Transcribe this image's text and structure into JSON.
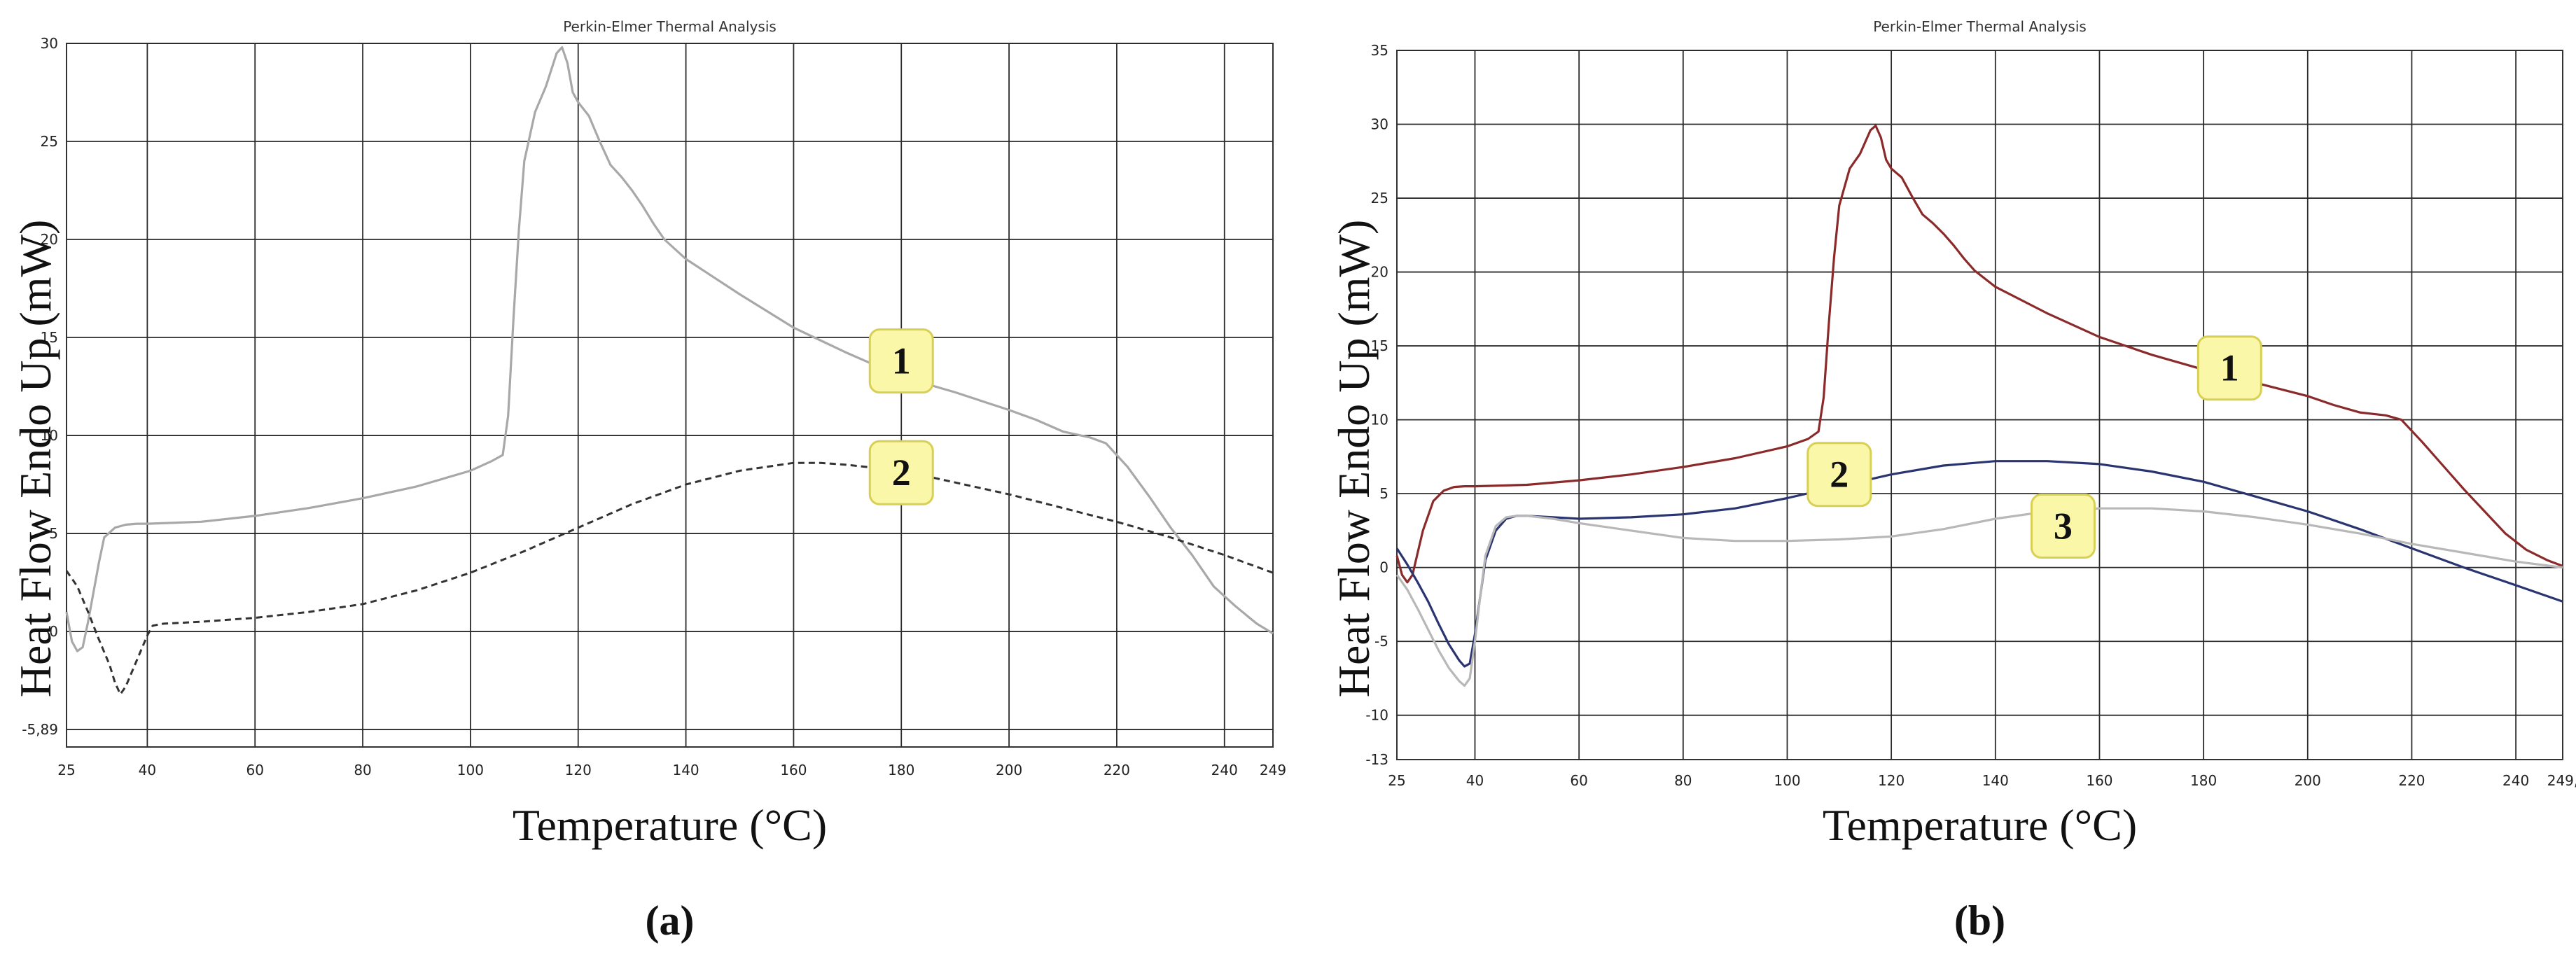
{
  "chart_data": [
    {
      "type": "line",
      "panel_label": "(a)",
      "title": "Perkin-Elmer Thermal Analysis",
      "xlabel": "Temperature (°C)",
      "ylabel": "Heat Flow Endo Up (mW)",
      "xlim": [
        25,
        249
      ],
      "ylim": [
        -5.89,
        30
      ],
      "x_ticks": [
        "25",
        "40",
        "60",
        "80",
        "100",
        "120",
        "140",
        "160",
        "180",
        "200",
        "220",
        "240",
        "249"
      ],
      "y_ticks": [
        "30",
        "25",
        "20",
        "15",
        "10",
        "5",
        "0",
        "-5,89"
      ],
      "grid": true,
      "series": [
        {
          "name": "1",
          "color": "#a8a8a8",
          "dash": "solid",
          "x": [
            25,
            26,
            27,
            28,
            29,
            30,
            31,
            32,
            34,
            36,
            38,
            40,
            50,
            60,
            70,
            80,
            90,
            100,
            104,
            106,
            107,
            108,
            109,
            110,
            112,
            114,
            116,
            117,
            118,
            119,
            120,
            122,
            124,
            126,
            128,
            130,
            132,
            134,
            136,
            140,
            150,
            160,
            170,
            180,
            190,
            200,
            205,
            210,
            215,
            218,
            222,
            226,
            230,
            234,
            238,
            242,
            246,
            249
          ],
          "y": [
            1.0,
            -0.5,
            -1.0,
            -0.8,
            0.5,
            2.0,
            3.5,
            4.8,
            5.3,
            5.45,
            5.5,
            5.5,
            5.6,
            5.9,
            6.3,
            6.8,
            7.4,
            8.2,
            8.7,
            9.0,
            11.0,
            16.0,
            20.5,
            24.0,
            26.5,
            27.8,
            29.5,
            29.8,
            29.0,
            27.5,
            27.0,
            26.3,
            25.0,
            23.8,
            23.2,
            22.5,
            21.7,
            20.8,
            20.0,
            19.0,
            17.2,
            15.5,
            14.2,
            13.0,
            12.2,
            11.3,
            10.8,
            10.2,
            9.9,
            9.6,
            8.4,
            6.9,
            5.3,
            3.9,
            2.3,
            1.3,
            0.4,
            -0.1
          ]
        },
        {
          "name": "2",
          "color": "#333333",
          "dash": "dashed",
          "x": [
            25,
            27,
            29,
            31,
            33,
            34,
            35,
            36,
            38,
            40,
            41,
            43,
            50,
            60,
            70,
            80,
            90,
            100,
            110,
            120,
            130,
            140,
            150,
            160,
            165,
            170,
            180,
            190,
            200,
            210,
            220,
            230,
            240,
            249
          ],
          "y": [
            3.1,
            2.3,
            1.0,
            -0.4,
            -1.7,
            -2.6,
            -3.2,
            -2.8,
            -1.5,
            -0.2,
            0.3,
            0.4,
            0.5,
            0.7,
            1.0,
            1.4,
            2.1,
            3.0,
            4.1,
            5.3,
            6.5,
            7.5,
            8.2,
            8.6,
            8.6,
            8.5,
            8.2,
            7.6,
            7.0,
            6.3,
            5.6,
            4.8,
            3.9,
            3.0
          ]
        }
      ],
      "annotations": [
        {
          "text": "1",
          "x": 180,
          "y": 13.8
        },
        {
          "text": "2",
          "x": 180,
          "y": 8.1
        }
      ]
    },
    {
      "type": "line",
      "panel_label": "(b)",
      "title": "Perkin-Elmer Thermal Analysis",
      "xlabel": "Temperature (°C)",
      "ylabel": "Heat Flow Endo Up (mW)",
      "xlim": [
        25,
        249
      ],
      "ylim": [
        -13,
        35
      ],
      "x_ticks": [
        "25",
        "40",
        "60",
        "80",
        "100",
        "120",
        "140",
        "160",
        "180",
        "200",
        "220",
        "240",
        "249,"
      ],
      "y_ticks": [
        "35",
        "30",
        "25",
        "20",
        "15",
        "10",
        "5",
        "0",
        "-5",
        "-10",
        "-13"
      ],
      "grid": true,
      "series": [
        {
          "name": "1",
          "color": "#8b2a2a",
          "dash": "solid",
          "x": [
            25,
            26,
            27,
            28,
            29,
            30,
            32,
            34,
            36,
            38,
            40,
            50,
            60,
            70,
            80,
            90,
            100,
            104,
            106,
            107,
            108,
            109,
            110,
            112,
            114,
            116,
            117,
            118,
            119,
            120,
            122,
            124,
            126,
            128,
            130,
            132,
            134,
            136,
            140,
            150,
            160,
            170,
            180,
            190,
            200,
            205,
            210,
            215,
            218,
            222,
            226,
            230,
            234,
            238,
            242,
            246,
            249
          ],
          "y": [
            0.8,
            -0.5,
            -1.0,
            -0.5,
            1.0,
            2.5,
            4.5,
            5.2,
            5.45,
            5.5,
            5.5,
            5.6,
            5.9,
            6.3,
            6.8,
            7.4,
            8.2,
            8.7,
            9.2,
            11.5,
            16.5,
            21.0,
            24.5,
            27.0,
            28.0,
            29.6,
            29.9,
            29.1,
            27.6,
            27.0,
            26.4,
            25.1,
            23.9,
            23.3,
            22.6,
            21.8,
            20.9,
            20.1,
            19.0,
            17.2,
            15.6,
            14.4,
            13.4,
            12.5,
            11.6,
            11.0,
            10.5,
            10.3,
            10.0,
            8.5,
            6.9,
            5.3,
            3.8,
            2.3,
            1.2,
            0.5,
            0.1
          ]
        },
        {
          "name": "2",
          "color": "#2a3470",
          "dash": "solid",
          "x": [
            25,
            27,
            29,
            31,
            33,
            35,
            37,
            38,
            39,
            40,
            41,
            42,
            44,
            46,
            48,
            50,
            55,
            60,
            70,
            80,
            90,
            100,
            110,
            120,
            130,
            140,
            150,
            160,
            170,
            180,
            190,
            200,
            210,
            220,
            230,
            240,
            249
          ],
          "y": [
            1.3,
            0.2,
            -1.0,
            -2.3,
            -3.8,
            -5.2,
            -6.3,
            -6.7,
            -6.5,
            -4.5,
            -2.0,
            0.5,
            2.5,
            3.3,
            3.5,
            3.5,
            3.4,
            3.3,
            3.4,
            3.6,
            4.0,
            4.7,
            5.5,
            6.3,
            6.9,
            7.2,
            7.2,
            7.0,
            6.5,
            5.8,
            4.8,
            3.8,
            2.6,
            1.3,
            0.0,
            -1.2,
            -2.3
          ]
        },
        {
          "name": "3",
          "color": "#b8b8b8",
          "dash": "solid",
          "x": [
            25,
            27,
            29,
            31,
            33,
            35,
            37,
            38,
            39,
            40,
            41,
            42,
            44,
            46,
            48,
            50,
            55,
            60,
            70,
            80,
            90,
            100,
            110,
            120,
            130,
            140,
            150,
            160,
            170,
            180,
            190,
            200,
            210,
            220,
            230,
            240,
            249
          ],
          "y": [
            -0.5,
            -1.5,
            -2.8,
            -4.2,
            -5.6,
            -6.8,
            -7.7,
            -8.0,
            -7.5,
            -5.0,
            -2.0,
            0.8,
            2.8,
            3.4,
            3.5,
            3.5,
            3.3,
            3.0,
            2.5,
            2.0,
            1.8,
            1.8,
            1.9,
            2.1,
            2.6,
            3.3,
            3.8,
            4.0,
            4.0,
            3.8,
            3.4,
            2.9,
            2.3,
            1.6,
            1.0,
            0.4,
            0.0
          ]
        }
      ],
      "annotations": [
        {
          "text": "1",
          "x": 185,
          "y": 13.5
        },
        {
          "text": "2",
          "x": 110,
          "y": 6.3
        },
        {
          "text": "3",
          "x": 153,
          "y": 2.8
        }
      ]
    }
  ]
}
